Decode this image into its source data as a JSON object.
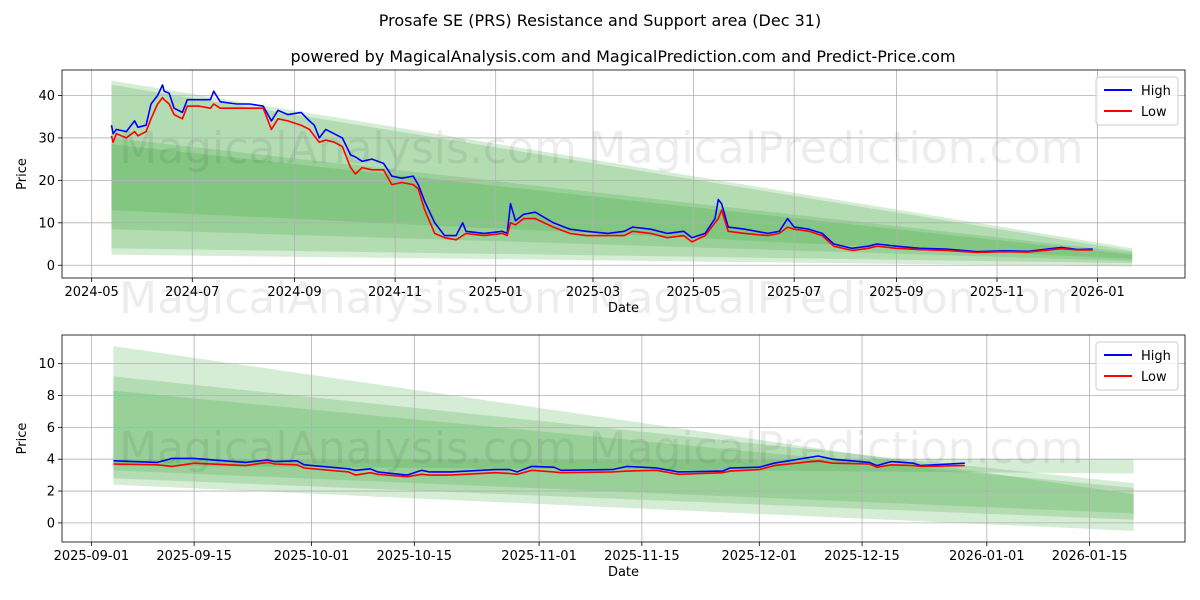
{
  "figure": {
    "title": "Prosafe SE (PRS) Resistance and Support area (Dec 31)",
    "subtitle": "powered by MagicalAnalysis.com and MagicalPrediction.com and Predict-Price.com",
    "watermark_left": "MagicalAnalysis.com",
    "watermark_right": "MagicalPrediction.com"
  },
  "colors": {
    "high": "#0000ff",
    "low": "#ff0000",
    "band": "#2ca02c",
    "grid": "#b0b0b0"
  },
  "chart_data": [
    {
      "type": "line",
      "title": "Prosafe SE (PRS) Resistance and Support area (Dec 31)",
      "xlabel": "Date",
      "ylabel": "Price",
      "xlim": [
        "2024-04-13",
        "2026-02-23"
      ],
      "ylim": [
        -3,
        46
      ],
      "grid": true,
      "legend": "top-right",
      "xticks": [
        "2024-05",
        "2024-07",
        "2024-09",
        "2024-11",
        "2025-01",
        "2025-03",
        "2025-05",
        "2025-07",
        "2025-09",
        "2025-11",
        "2026-01"
      ],
      "xtick_dates": [
        "2024-05-01",
        "2024-07-01",
        "2024-09-01",
        "2024-11-01",
        "2025-01-01",
        "2025-03-01",
        "2025-05-01",
        "2025-07-01",
        "2025-09-01",
        "2025-11-01",
        "2026-01-01"
      ],
      "yticks": [
        0,
        10,
        20,
        30,
        40
      ],
      "bands": [
        {
          "start": "2024-05-13",
          "end": "2026-01-22",
          "lower": [
            2.5,
            -0.3
          ],
          "upper": [
            43.5,
            4.0
          ]
        },
        {
          "start": "2024-05-13",
          "end": "2026-01-22",
          "lower": [
            4.0,
            0.5
          ],
          "upper": [
            42.5,
            3.4
          ]
        },
        {
          "start": "2024-05-13",
          "end": "2026-01-22",
          "lower": [
            8.5,
            1.0
          ],
          "upper": [
            30.0,
            3.0
          ]
        },
        {
          "start": "2024-05-13",
          "end": "2026-01-22",
          "lower": [
            13.0,
            1.5
          ],
          "upper": [
            28.5,
            2.5
          ]
        }
      ],
      "x": [
        "2024-05-13",
        "2024-05-14",
        "2024-05-16",
        "2024-05-22",
        "2024-05-27",
        "2024-05-29",
        "2024-06-03",
        "2024-06-06",
        "2024-06-10",
        "2024-06-13",
        "2024-06-14",
        "2024-06-17",
        "2024-06-20",
        "2024-06-25",
        "2024-06-28",
        "2024-07-05",
        "2024-07-12",
        "2024-07-14",
        "2024-07-18",
        "2024-07-28",
        "2024-08-05",
        "2024-08-13",
        "2024-08-18",
        "2024-08-22",
        "2024-08-28",
        "2024-09-05",
        "2024-09-10",
        "2024-09-13",
        "2024-09-16",
        "2024-09-20",
        "2024-09-25",
        "2024-09-30",
        "2024-10-05",
        "2024-10-08",
        "2024-10-12",
        "2024-10-18",
        "2024-10-25",
        "2024-10-30",
        "2024-11-05",
        "2024-11-12",
        "2024-11-15",
        "2024-11-19",
        "2024-11-25",
        "2024-12-01",
        "2024-12-08",
        "2024-12-12",
        "2024-12-14",
        "2024-12-25",
        "2025-01-05",
        "2025-01-08",
        "2025-01-10",
        "2025-01-13",
        "2025-01-18",
        "2025-01-25",
        "2025-02-05",
        "2025-02-15",
        "2025-02-25",
        "2025-03-10",
        "2025-03-20",
        "2025-03-25",
        "2025-04-05",
        "2025-04-15",
        "2025-04-25",
        "2025-04-30",
        "2025-05-08",
        "2025-05-14",
        "2025-05-16",
        "2025-05-18",
        "2025-05-22",
        "2025-06-01",
        "2025-06-15",
        "2025-06-22",
        "2025-06-27",
        "2025-07-01",
        "2025-07-10",
        "2025-07-18",
        "2025-07-25",
        "2025-08-05",
        "2025-08-15",
        "2025-08-20",
        "2025-09-01",
        "2025-09-15",
        "2025-10-01",
        "2025-10-20",
        "2025-11-05",
        "2025-11-20",
        "2025-12-10",
        "2025-12-20",
        "2025-12-29"
      ],
      "series": [
        {
          "name": "High",
          "values": [
            33,
            31,
            32,
            31.5,
            34,
            32.5,
            33,
            38,
            40,
            42.5,
            41,
            40.5,
            37,
            36,
            39,
            39,
            39,
            41,
            38.5,
            38,
            38,
            37.5,
            34,
            36.5,
            35.5,
            36,
            34,
            33,
            30,
            32,
            31,
            30,
            26,
            25.5,
            24.5,
            25,
            24,
            21,
            20.5,
            21,
            19,
            15,
            10,
            7,
            7,
            10,
            8,
            7.5,
            8,
            7.5,
            14.5,
            10.5,
            12,
            12.5,
            10,
            8.5,
            8,
            7.5,
            8,
            9,
            8.5,
            7.5,
            8,
            6.5,
            7.5,
            11,
            15.5,
            14.5,
            9,
            8.5,
            7.5,
            8,
            11,
            9,
            8.5,
            7.5,
            5,
            4,
            4.5,
            5,
            4.5,
            4,
            3.8,
            3.2,
            3.4,
            3.3,
            4.2,
            3.7,
            3.8
          ]
        },
        {
          "name": "Low",
          "values": [
            30.5,
            29,
            31,
            30,
            31.5,
            30.5,
            31.5,
            34.5,
            38,
            39.5,
            39,
            38,
            35.5,
            34.5,
            37.5,
            37.5,
            37,
            38,
            37,
            37,
            37,
            37,
            32,
            34.5,
            34,
            33,
            32,
            30.5,
            29,
            29.5,
            29,
            28,
            23,
            21.5,
            23,
            22.5,
            22.5,
            19,
            19.5,
            19,
            18,
            13,
            7.5,
            6.5,
            6,
            7,
            7.5,
            7,
            7.5,
            7,
            10,
            9.5,
            11,
            11,
            9,
            7.5,
            7,
            7,
            7,
            8,
            7.5,
            6.5,
            7,
            5.5,
            7,
            10,
            11,
            13,
            8,
            7.5,
            7,
            7.5,
            9,
            8.5,
            8,
            7,
            4.5,
            3.5,
            4,
            4.5,
            4,
            3.7,
            3.5,
            3,
            3.2,
            3.1,
            3.9,
            3.6,
            3.6
          ]
        }
      ]
    },
    {
      "type": "line",
      "xlabel": "Date",
      "ylabel": "Price",
      "xlim": [
        "2025-08-28",
        "2026-01-28"
      ],
      "ylim": [
        -1.2,
        11.8
      ],
      "grid": true,
      "legend": "top-right",
      "xticks": [
        "2025-09-01",
        "2025-09-15",
        "2025-10-01",
        "2025-10-15",
        "2025-11-01",
        "2025-11-15",
        "2025-12-01",
        "2025-12-15",
        "2026-01-01",
        "2026-01-15"
      ],
      "xtick_dates": [
        "2025-09-01",
        "2025-09-15",
        "2025-10-01",
        "2025-10-15",
        "2025-11-01",
        "2025-11-15",
        "2025-12-01",
        "2025-12-15",
        "2026-01-01",
        "2026-01-15"
      ],
      "yticks": [
        0,
        2,
        4,
        6,
        8,
        10
      ],
      "bands": [
        {
          "start": "2025-09-04",
          "end": "2026-01-21",
          "lower": [
            2.4,
            -0.5
          ],
          "upper": [
            11.1,
            1.8
          ]
        },
        {
          "start": "2025-09-04",
          "end": "2026-01-21",
          "lower": [
            2.8,
            0.2
          ],
          "upper": [
            9.2,
            2.5
          ]
        },
        {
          "start": "2025-09-04",
          "end": "2026-01-21",
          "lower": [
            3.3,
            0.6
          ],
          "upper": [
            8.3,
            2.2
          ]
        },
        {
          "start": "2025-09-04",
          "end": "2026-01-21",
          "lower": [
            3.6,
            3.1
          ],
          "upper": [
            4.0,
            4.0
          ]
        }
      ],
      "x": [
        "2025-09-04",
        "2025-09-10",
        "2025-09-12",
        "2025-09-15",
        "2025-09-22",
        "2025-09-25",
        "2025-09-26",
        "2025-09-29",
        "2025-09-30",
        "2025-10-06",
        "2025-10-07",
        "2025-10-09",
        "2025-10-10",
        "2025-10-14",
        "2025-10-16",
        "2025-10-17",
        "2025-10-20",
        "2025-10-26",
        "2025-10-28",
        "2025-10-29",
        "2025-10-31",
        "2025-11-03",
        "2025-11-04",
        "2025-11-11",
        "2025-11-13",
        "2025-11-17",
        "2025-11-20",
        "2025-11-26",
        "2025-11-27",
        "2025-12-01",
        "2025-12-03",
        "2025-12-09",
        "2025-12-11",
        "2025-12-16",
        "2025-12-17",
        "2025-12-19",
        "2025-12-22",
        "2025-12-23",
        "2025-12-29"
      ],
      "series": [
        {
          "name": "High",
          "values": [
            3.9,
            3.8,
            4.05,
            4.05,
            3.8,
            3.95,
            3.85,
            3.9,
            3.65,
            3.4,
            3.3,
            3.4,
            3.2,
            3.0,
            3.3,
            3.2,
            3.2,
            3.35,
            3.35,
            3.2,
            3.55,
            3.5,
            3.3,
            3.35,
            3.55,
            3.45,
            3.2,
            3.25,
            3.45,
            3.5,
            3.75,
            4.2,
            4.0,
            3.8,
            3.6,
            3.85,
            3.75,
            3.6,
            3.75
          ]
        },
        {
          "name": "Low",
          "values": [
            3.7,
            3.65,
            3.55,
            3.75,
            3.6,
            3.8,
            3.7,
            3.65,
            3.45,
            3.2,
            3.0,
            3.15,
            3.05,
            2.9,
            3.05,
            3.0,
            3.0,
            3.15,
            3.1,
            3.05,
            3.3,
            3.2,
            3.15,
            3.2,
            3.25,
            3.3,
            3.05,
            3.15,
            3.25,
            3.35,
            3.6,
            3.9,
            3.75,
            3.7,
            3.5,
            3.65,
            3.6,
            3.55,
            3.6
          ]
        }
      ]
    }
  ]
}
